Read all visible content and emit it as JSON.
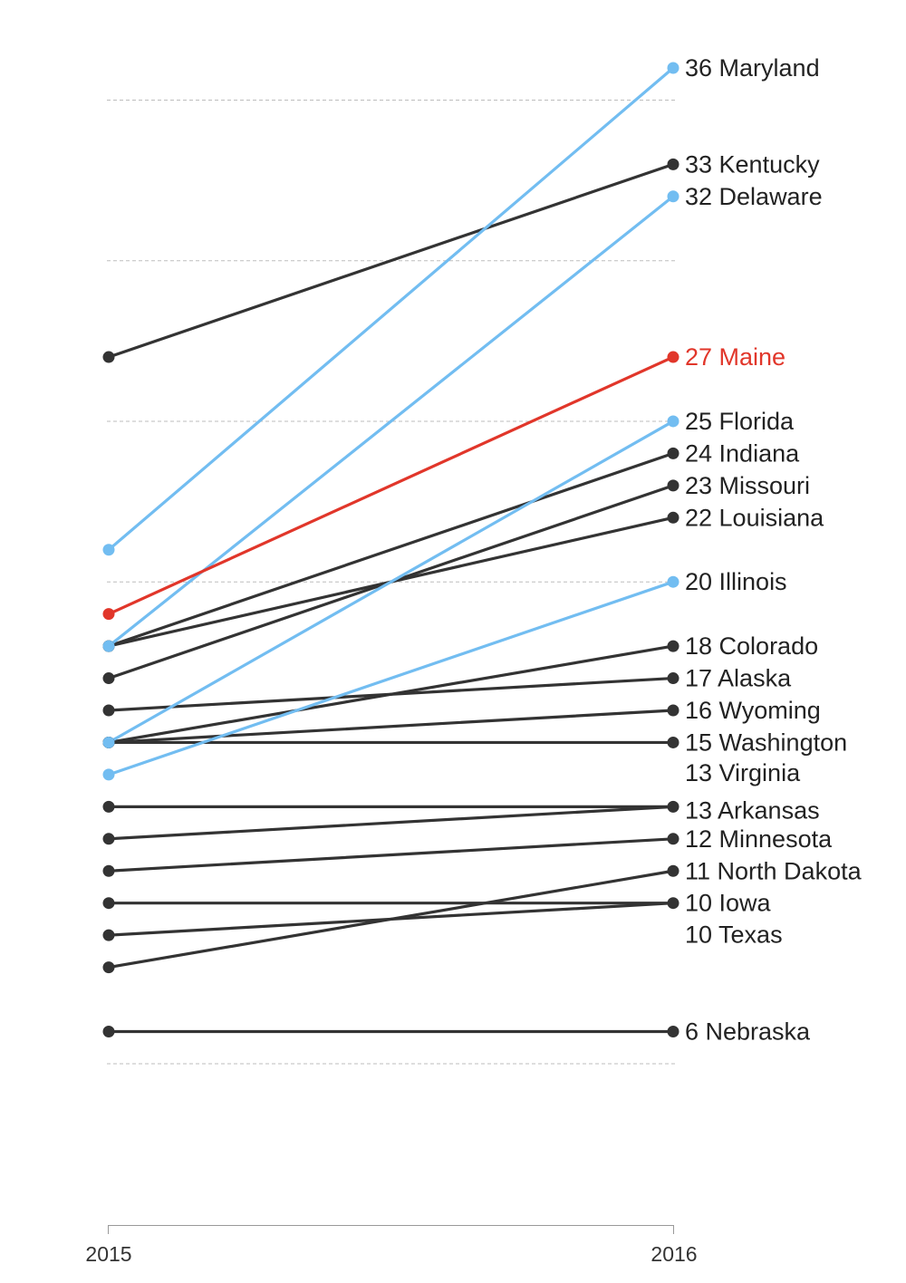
{
  "chart_data": {
    "type": "slope",
    "x": [
      "2015",
      "2016"
    ],
    "ylim": [
      3,
      38
    ],
    "gridlines": [
      5,
      10,
      15,
      20,
      25,
      30,
      35
    ],
    "colors": {
      "default": "#333333",
      "highlight_blue": "#72bdf1",
      "highlight_red": "#e1362a"
    },
    "series": [
      {
        "name": "Maryland",
        "values": [
          21,
          36
        ],
        "color": "#72bdf1",
        "label": "36 Maryland"
      },
      {
        "name": "Kentucky",
        "values": [
          27,
          33
        ],
        "color": "#333333",
        "label": "33 Kentucky"
      },
      {
        "name": "Delaware",
        "values": [
          18,
          32
        ],
        "color": "#72bdf1",
        "label": "32 Delaware"
      },
      {
        "name": "Maine",
        "values": [
          19,
          27
        ],
        "color": "#e1362a",
        "label": "27 Maine"
      },
      {
        "name": "Florida",
        "values": [
          15,
          25
        ],
        "color": "#72bdf1",
        "label": "25 Florida"
      },
      {
        "name": "Indiana",
        "values": [
          18,
          24
        ],
        "color": "#333333",
        "label": "24 Indiana"
      },
      {
        "name": "Missouri",
        "values": [
          17,
          23
        ],
        "color": "#333333",
        "label": "23 Missouri"
      },
      {
        "name": "Louisiana",
        "values": [
          18,
          22
        ],
        "color": "#333333",
        "label": "22 Louisiana"
      },
      {
        "name": "Illinois",
        "values": [
          14,
          20
        ],
        "color": "#72bdf1",
        "label": "20 Illinois"
      },
      {
        "name": "Colorado",
        "values": [
          15,
          18
        ],
        "color": "#333333",
        "label": "18 Colorado"
      },
      {
        "name": "Alaska",
        "values": [
          16,
          17
        ],
        "color": "#333333",
        "label": "17 Alaska"
      },
      {
        "name": "Wyoming",
        "values": [
          15,
          16
        ],
        "color": "#333333",
        "label": "16 Wyoming"
      },
      {
        "name": "Washington",
        "values": [
          15,
          15
        ],
        "color": "#333333",
        "label": "15 Washington"
      },
      {
        "name": "Virginia",
        "values": [
          13,
          13
        ],
        "color": "#333333",
        "label": "13 Virginia"
      },
      {
        "name": "Arkansas",
        "values": [
          12,
          13
        ],
        "color": "#333333",
        "label": "13 Arkansas"
      },
      {
        "name": "Minnesota",
        "values": [
          11,
          12
        ],
        "color": "#333333",
        "label": "12 Minnesota"
      },
      {
        "name": "North Dakota",
        "values": [
          8,
          11
        ],
        "color": "#333333",
        "label": "11 North Dakota"
      },
      {
        "name": "Iowa",
        "values": [
          10,
          10
        ],
        "color": "#333333",
        "label": "10 Iowa"
      },
      {
        "name": "Texas",
        "values": [
          9,
          10
        ],
        "color": "#333333",
        "label": "10 Texas"
      },
      {
        "name": "Nebraska",
        "values": [
          6,
          6
        ],
        "color": "#333333",
        "label": "6 Nebraska"
      }
    ]
  }
}
